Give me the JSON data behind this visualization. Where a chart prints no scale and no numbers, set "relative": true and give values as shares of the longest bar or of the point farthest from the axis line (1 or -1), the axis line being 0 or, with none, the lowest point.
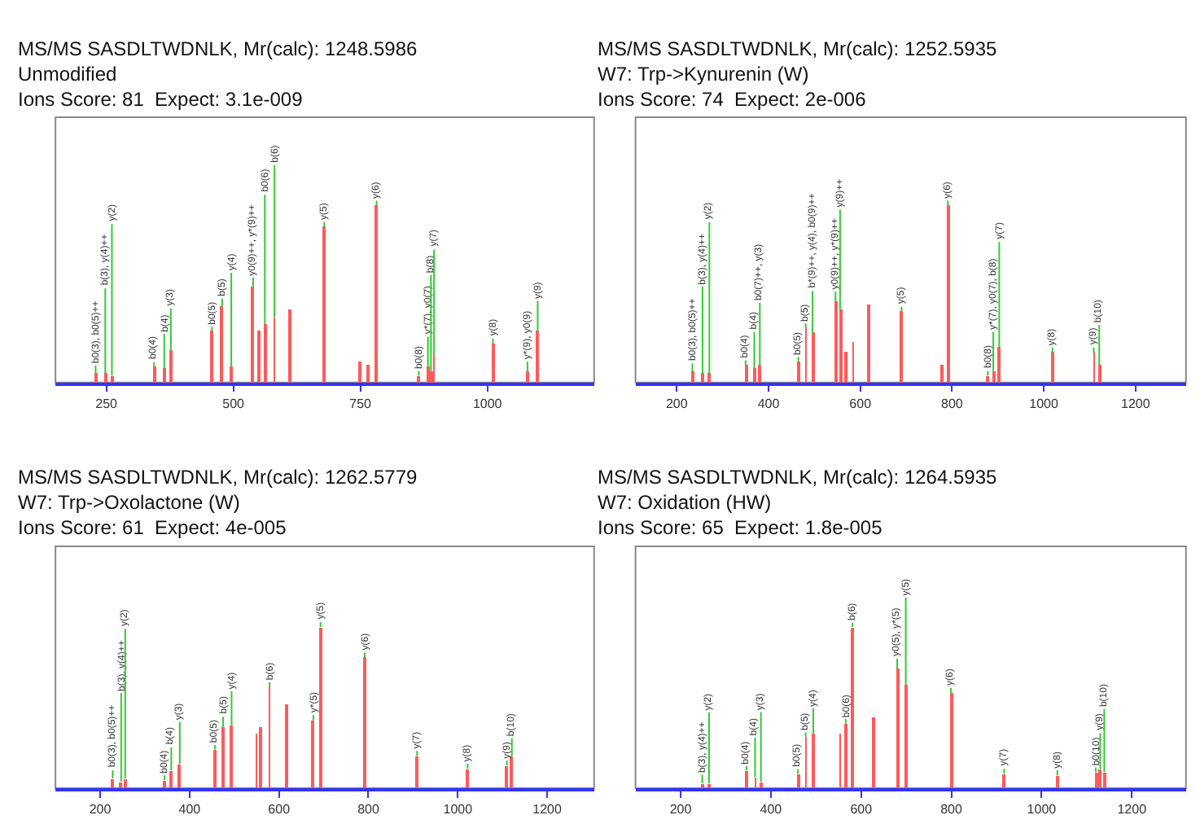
{
  "chart_data": [
    {
      "type": "bar",
      "title": "MS/MS SASDLTWDNLK, Mr(calc): 1248.5986",
      "subtitle": "Unmodified\nIons Score: 81  Expect: 3.1e-009",
      "relative": true,
      "tick_labels": "x",
      "grid": false,
      "color": "#ff5a5a",
      "xlim": [
        150,
        1210
      ],
      "xticks": [
        250,
        500,
        750,
        1000
      ],
      "x": [
        229,
        248,
        261,
        344,
        364,
        377,
        458,
        478,
        496,
        539,
        550,
        562,
        581,
        612,
        679,
        749,
        765,
        782,
        865,
        883,
        889,
        895,
        1011,
        1079,
        1099
      ],
      "values": [
        0.05,
        0.05,
        0.04,
        0.09,
        0.08,
        0.18,
        0.29,
        0.43,
        0.09,
        0.54,
        0.29,
        0.33,
        0.37,
        0.41,
        0.88,
        0.12,
        0.1,
        1,
        0.04,
        0.09,
        0.06,
        0.16,
        0.22,
        0.06,
        0.29
      ],
      "annotations": [
        {
          "text": "b0(3), b0(5)++",
          "x": 229,
          "y": 0.05
        },
        {
          "text": "b(3), y(4)++",
          "x": 248,
          "y": 0.05
        },
        {
          "text": "y(2)",
          "x": 261,
          "y": 0.04
        },
        {
          "text": "b0(4)",
          "x": 344,
          "y": 0.09
        },
        {
          "text": "b(4)",
          "x": 364,
          "y": 0.08
        },
        {
          "text": "y(3)",
          "x": 377,
          "y": 0.18
        },
        {
          "text": "b0(5)",
          "x": 458,
          "y": 0.29
        },
        {
          "text": "b(5)",
          "x": 478,
          "y": 0.43
        },
        {
          "text": "y(4)",
          "x": 496,
          "y": 0.09
        },
        {
          "text": "y0(9)++, y*(9)++",
          "x": 539,
          "y": 0.54
        },
        {
          "text": "b0(6)",
          "x": 562,
          "y": 0.33
        },
        {
          "text": "b(6)",
          "x": 581,
          "y": 0.37
        },
        {
          "text": "y(5)",
          "x": 679,
          "y": 0.88
        },
        {
          "text": "y(6)",
          "x": 782,
          "y": 1
        },
        {
          "text": "b0(8)",
          "x": 865,
          "y": 0.04
        },
        {
          "text": "y*(7), y0(7)",
          "x": 883,
          "y": 0.09
        },
        {
          "text": "b(8)",
          "x": 889,
          "y": 0.06
        },
        {
          "text": "y(7)",
          "x": 895,
          "y": 0.16
        },
        {
          "text": "y(8)",
          "x": 1011,
          "y": 0.22
        },
        {
          "text": "y*(9), y0(9)",
          "x": 1079,
          "y": 0.06
        },
        {
          "text": "y(9)",
          "x": 1099,
          "y": 0.29
        }
      ]
    },
    {
      "type": "bar",
      "title": "MS/MS SASDLTWDNLK, Mr(calc): 1252.5935",
      "subtitle": "W7: Trp->Kynurenin (W)\nIons Score: 74  Expect: 2e-006",
      "relative": true,
      "tick_labels": "x",
      "grid": false,
      "color": "#ff5a5a",
      "xlim": [
        110,
        1310
      ],
      "xticks": [
        200,
        400,
        600,
        800,
        1000,
        1200
      ],
      "x": [
        234,
        256,
        271,
        350,
        369,
        381,
        465,
        481,
        496,
        546,
        556,
        569,
        584,
        619,
        690,
        778,
        791,
        878,
        890,
        903,
        1019,
        1109,
        1121
      ],
      "values": [
        0.06,
        0.05,
        0.05,
        0.1,
        0.08,
        0.1,
        0.12,
        0.31,
        0.28,
        0.46,
        0.41,
        0.17,
        0.23,
        0.44,
        0.4,
        0.1,
        1,
        0.04,
        0.06,
        0.2,
        0.17,
        0.17,
        0.1
      ],
      "annotations": [
        {
          "text": "b0(3), b0(5)++",
          "x": 234,
          "y": 0.06
        },
        {
          "text": "b(3), y(4)++",
          "x": 256,
          "y": 0.05
        },
        {
          "text": "y(2)",
          "x": 271,
          "y": 0.05
        },
        {
          "text": "b0(4)",
          "x": 350,
          "y": 0.1
        },
        {
          "text": "b(4)",
          "x": 369,
          "y": 0.08
        },
        {
          "text": "b0(7)++, y(3)",
          "x": 381,
          "y": 0.1
        },
        {
          "text": "b0(5)",
          "x": 465,
          "y": 0.12
        },
        {
          "text": "b(5)",
          "x": 481,
          "y": 0.31
        },
        {
          "text": "b*(9)++, y(4), b0(9)++",
          "x": 496,
          "y": 0.28
        },
        {
          "text": "y0(9)++, y*(9)++",
          "x": 546,
          "y": 0.46
        },
        {
          "text": "y(9)++",
          "x": 556,
          "y": 0.41
        },
        {
          "text": "y(5)",
          "x": 690,
          "y": 0.4
        },
        {
          "text": "y(6)",
          "x": 791,
          "y": 1
        },
        {
          "text": "b0(8)",
          "x": 878,
          "y": 0.04
        },
        {
          "text": "y*(7), y0(7), b(8)",
          "x": 890,
          "y": 0.06
        },
        {
          "text": "y(7)",
          "x": 903,
          "y": 0.2
        },
        {
          "text": "y(8)",
          "x": 1019,
          "y": 0.17
        },
        {
          "text": "y(9)",
          "x": 1109,
          "y": 0.17
        },
        {
          "text": "b(10)",
          "x": 1121,
          "y": 0.1
        }
      ]
    },
    {
      "type": "bar",
      "title": "MS/MS SASDLTWDNLK, Mr(calc): 1262.5779",
      "subtitle": "W7: Trp->Oxolactone (W)\nIons Score: 61  Expect: 4e-005",
      "relative": true,
      "tick_labels": "x",
      "grid": false,
      "color": "#ff5a5a",
      "xlim": [
        100,
        1305
      ],
      "xticks": [
        200,
        400,
        600,
        800,
        1000,
        1200
      ],
      "x": [
        228,
        247,
        256,
        344,
        359,
        378,
        457,
        475,
        494,
        550,
        560,
        579,
        618,
        677,
        693,
        792,
        909,
        1022,
        1110,
        1121
      ],
      "values": [
        0.06,
        0.04,
        0.06,
        0.05,
        0.11,
        0.15,
        0.24,
        0.38,
        0.39,
        0.34,
        0.38,
        0.63,
        0.52,
        0.42,
        1,
        0.81,
        0.2,
        0.12,
        0.14,
        0.2
      ],
      "annotations": [
        {
          "text": "b0(3), b0(5)++",
          "x": 228,
          "y": 0.06
        },
        {
          "text": "b(3), y(4)++",
          "x": 247,
          "y": 0.04
        },
        {
          "text": "y(2)",
          "x": 256,
          "y": 0.06
        },
        {
          "text": "b0(4)",
          "x": 344,
          "y": 0.05
        },
        {
          "text": "b(4)",
          "x": 359,
          "y": 0.11
        },
        {
          "text": "y(3)",
          "x": 378,
          "y": 0.15
        },
        {
          "text": "b0(5)",
          "x": 457,
          "y": 0.24
        },
        {
          "text": "b(5)",
          "x": 475,
          "y": 0.38
        },
        {
          "text": "y(4)",
          "x": 494,
          "y": 0.39
        },
        {
          "text": "b(6)",
          "x": 579,
          "y": 0.63
        },
        {
          "text": "y*(5)",
          "x": 677,
          "y": 0.42
        },
        {
          "text": "y(5)",
          "x": 693,
          "y": 1
        },
        {
          "text": "y(6)",
          "x": 792,
          "y": 0.81
        },
        {
          "text": "y(7)",
          "x": 909,
          "y": 0.2
        },
        {
          "text": "y(8)",
          "x": 1022,
          "y": 0.12
        },
        {
          "text": "y(9)",
          "x": 1110,
          "y": 0.14
        },
        {
          "text": "b(10)",
          "x": 1121,
          "y": 0.2
        }
      ]
    },
    {
      "type": "bar",
      "title": "MS/MS SASDLTWDNLK, Mr(calc): 1264.5935",
      "subtitle": "W7: Oxidation (HW)\nIons Score: 65  Expect: 1.8e-005",
      "relative": true,
      "tick_labels": "x",
      "grid": false,
      "color": "#ff5a5a",
      "xlim": [
        100,
        1320
      ],
      "xticks": [
        200,
        400,
        600,
        800,
        1000,
        1200
      ],
      "x": [
        248,
        263,
        346,
        365,
        378,
        460,
        477,
        494,
        553,
        566,
        581,
        626,
        680,
        699,
        799,
        917,
        1035,
        1120,
        1130,
        1139
      ],
      "values": [
        0.03,
        0.03,
        0.11,
        0.07,
        0.04,
        0.09,
        0.32,
        0.34,
        0.34,
        0.4,
        1,
        0.44,
        0.74,
        0.64,
        0.59,
        0.09,
        0.08,
        0.1,
        0.12,
        0.1
      ],
      "annotations": [
        {
          "text": "b(3), y(4)++",
          "x": 248,
          "y": 0.03
        },
        {
          "text": "y(2)",
          "x": 263,
          "y": 0.03
        },
        {
          "text": "b0(4)",
          "x": 346,
          "y": 0.11
        },
        {
          "text": "b(4)",
          "x": 365,
          "y": 0.07
        },
        {
          "text": "y(3)",
          "x": 378,
          "y": 0.04
        },
        {
          "text": "b0(5)",
          "x": 460,
          "y": 0.09
        },
        {
          "text": "b(5)",
          "x": 477,
          "y": 0.32
        },
        {
          "text": "y(4)",
          "x": 494,
          "y": 0.34
        },
        {
          "text": "b0(6)",
          "x": 566,
          "y": 0.4
        },
        {
          "text": "b(6)",
          "x": 581,
          "y": 1
        },
        {
          "text": "y0(5), y*(5)",
          "x": 680,
          "y": 0.74
        },
        {
          "text": "y(5)",
          "x": 699,
          "y": 0.64
        },
        {
          "text": "y(6)",
          "x": 799,
          "y": 0.59
        },
        {
          "text": "y(7)",
          "x": 917,
          "y": 0.09
        },
        {
          "text": "y(8)",
          "x": 1035,
          "y": 0.08
        },
        {
          "text": "b0(10)",
          "x": 1120,
          "y": 0.1
        },
        {
          "text": "y(9)",
          "x": 1130,
          "y": 0.12
        },
        {
          "text": "b(10)",
          "x": 1139,
          "y": 0.1
        }
      ]
    }
  ]
}
